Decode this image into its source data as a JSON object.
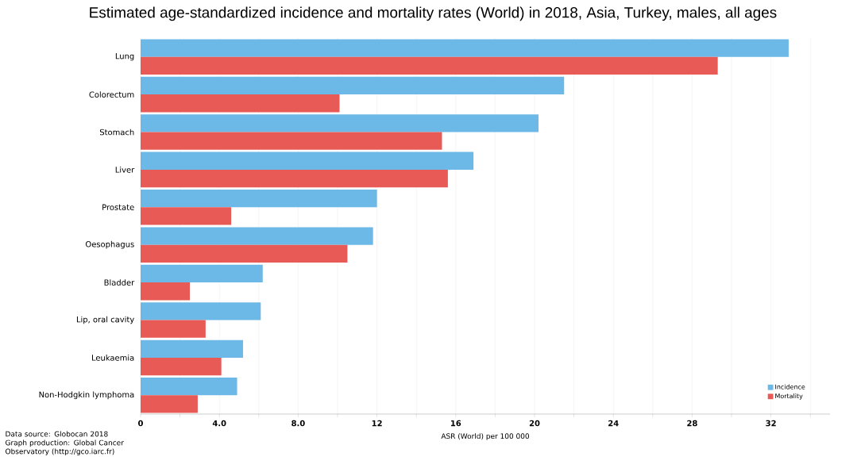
{
  "chart_data": {
    "type": "bar",
    "orientation": "horizontal",
    "title": "Estimated age-standardized incidence and mortality rates (World) in 2018, Asia, Turkey, males, all ages",
    "xlabel": "ASR (World) per 100 000",
    "categories": [
      "Lung",
      "Colorectum",
      "Stomach",
      "Liver",
      "Prostate",
      "Oesophagus",
      "Bladder",
      "Lip, oral cavity",
      "Leukaemia",
      "Non-Hodgkin lymphoma"
    ],
    "series": [
      {
        "name": "Incidence",
        "color": "#6cb8e6",
        "values": [
          32.9,
          21.5,
          20.2,
          16.9,
          12.0,
          11.8,
          6.2,
          6.1,
          5.2,
          4.9
        ]
      },
      {
        "name": "Mortality",
        "color": "#e85a55",
        "values": [
          29.3,
          10.1,
          15.3,
          15.6,
          4.6,
          10.5,
          2.5,
          3.3,
          4.1,
          2.9
        ]
      }
    ],
    "xlim": [
      0,
      35
    ],
    "xticks": [
      0,
      {
        "value": 2,
        "label": null
      },
      {
        "value": 4,
        "label": "4.0"
      },
      {
        "value": 6,
        "label": null
      },
      {
        "value": 8,
        "label": "8.0"
      },
      {
        "value": 10,
        "label": null
      },
      12,
      {
        "value": 14,
        "label": null
      },
      16,
      {
        "value": 18,
        "label": null
      },
      20,
      {
        "value": 22,
        "label": null
      },
      24,
      {
        "value": 26,
        "label": null
      },
      28,
      {
        "value": 30,
        "label": null
      },
      32,
      {
        "value": 34,
        "label": null
      }
    ],
    "grid": "x",
    "legend": "bottom right",
    "annotations": [
      "Data source: Globocan 2018",
      "Graph production: Global Cancer Observatory (http://gco.iarc.fr)"
    ]
  }
}
